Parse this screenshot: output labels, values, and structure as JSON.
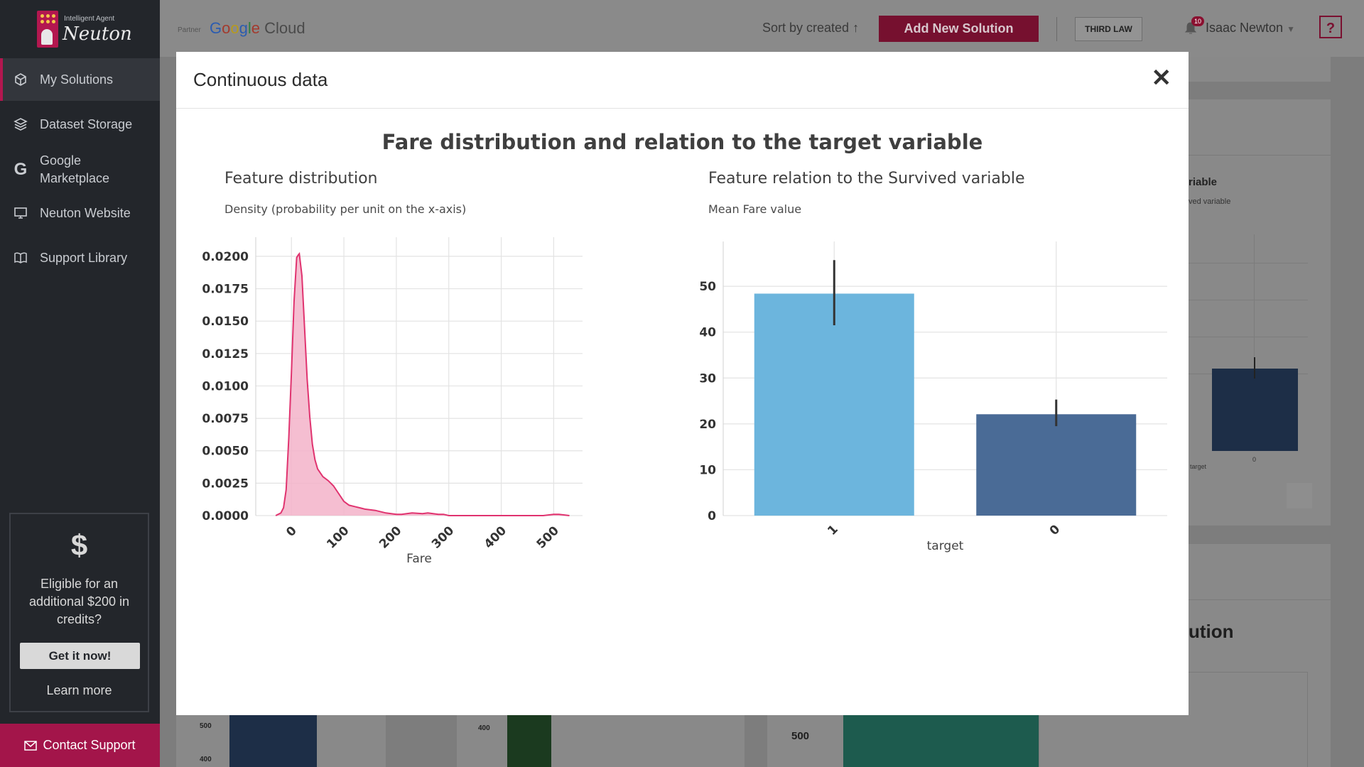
{
  "sidebar": {
    "logo": {
      "small": "Intelligent Agent",
      "big": "Neuton"
    },
    "items": [
      {
        "label": "My Solutions",
        "icon": "cube-icon"
      },
      {
        "label": "Dataset Storage",
        "icon": "layers-icon"
      },
      {
        "label": "Google Marketplace",
        "icon": "google-icon"
      },
      {
        "label": "Neuton Website",
        "icon": "monitor-icon"
      },
      {
        "label": "Support Library",
        "icon": "book-icon"
      }
    ],
    "credits": {
      "text": "Eligible for an additional $200 in credits?",
      "button": "Get it now!",
      "link": "Learn more"
    },
    "contact": "Contact Support"
  },
  "topbar": {
    "partner": "Partner",
    "cloud": "Cloud",
    "sort": "Sort by created",
    "add_button": "Add New Solution",
    "third_law": "THIRD LAW",
    "notifications": "10",
    "user": "Isaac Newton",
    "help": "?"
  },
  "background": {
    "partial_title_1": "riable",
    "partial_sub_1": "ved variable",
    "axis_target": "target",
    "axis_zero": "0",
    "partial_title_2": "ution",
    "tick_500": "500",
    "tick_400": "400"
  },
  "modal": {
    "title": "Continuous data",
    "figure_title": "Fare distribution and relation to the target variable",
    "left": {
      "title": "Feature distribution",
      "ylabel": "Density (probability per unit on the x-axis)"
    },
    "right": {
      "title": "Feature relation to the Survived variable",
      "ylabel": "Mean Fare value"
    }
  },
  "chart_data": [
    {
      "type": "area",
      "title": "Feature distribution",
      "xlabel": "Fare",
      "ylabel": "Density (probability per unit on the x-axis)",
      "xlim": [
        -68,
        555
      ],
      "ylim": [
        0,
        0.0212
      ],
      "xticks": [
        0,
        100,
        200,
        300,
        400,
        500
      ],
      "yticks": [
        "0.0000",
        "0.0025",
        "0.0050",
        "0.0075",
        "0.0100",
        "0.0125",
        "0.0150",
        "0.0175",
        "0.0200"
      ],
      "color": "#e0336f",
      "fill": "#f3b3c9",
      "x": [
        -30,
        -20,
        -15,
        -10,
        -5,
        0,
        5,
        10,
        13,
        15,
        20,
        25,
        30,
        35,
        40,
        45,
        50,
        60,
        70,
        80,
        90,
        100,
        110,
        120,
        130,
        140,
        160,
        180,
        200,
        210,
        220,
        230,
        250,
        260,
        270,
        280,
        290,
        300,
        350,
        400,
        450,
        480,
        500,
        510,
        520,
        530
      ],
      "y": [
        0,
        0.0002,
        0.0006,
        0.002,
        0.006,
        0.011,
        0.0165,
        0.0199,
        0.0201,
        0.0202,
        0.0185,
        0.0145,
        0.0105,
        0.0076,
        0.0055,
        0.0043,
        0.0036,
        0.003,
        0.0027,
        0.0023,
        0.0017,
        0.0011,
        0.0008,
        0.0007,
        0.0006,
        0.0005,
        0.0004,
        0.0002,
        0.0001,
        0.0001,
        0.00015,
        0.0002,
        0.00015,
        0.0002,
        0.00015,
        0.0001,
        0.0001,
        0,
        0,
        0,
        0,
        0,
        0.0001,
        0.0001,
        5e-05,
        0
      ]
    },
    {
      "type": "bar",
      "title": "Feature relation to the Survived variable",
      "xlabel": "target",
      "ylabel": "Mean Fare value",
      "categories": [
        "1",
        "0"
      ],
      "values": [
        48.4,
        22.1
      ],
      "error_low": [
        41.5,
        19.5
      ],
      "error_high": [
        55.7,
        25.3
      ],
      "colors": [
        "#6cb5dd",
        "#4a6b96"
      ],
      "ylim": [
        0,
        59
      ],
      "yticks": [
        0,
        10,
        20,
        30,
        40,
        50
      ]
    }
  ]
}
